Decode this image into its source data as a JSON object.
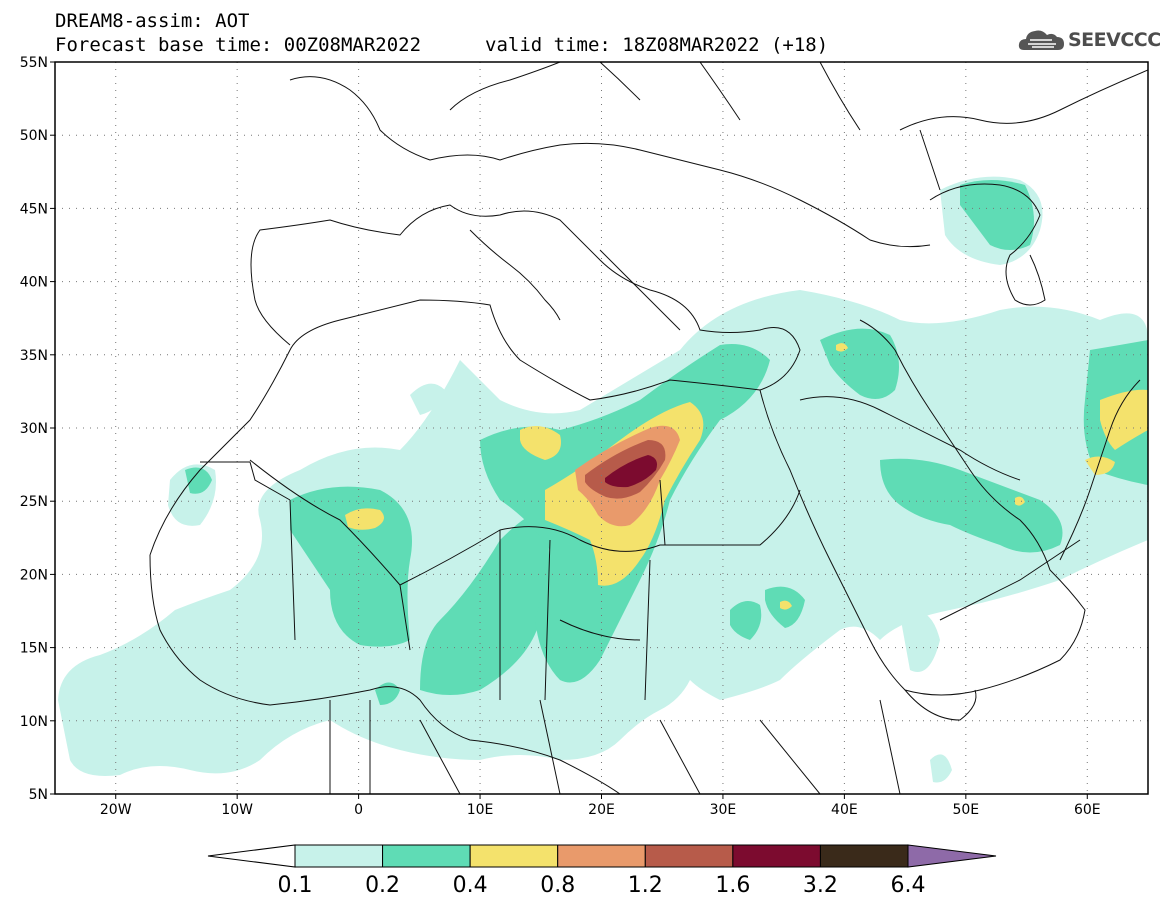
{
  "header": {
    "line1": "DREAM8-assim: AOT",
    "line2": "Forecast base time: 00Z08MAR2022",
    "valid": "valid time: 18Z08MAR2022 (+18)"
  },
  "logo": {
    "text": "SEEVCCC",
    "icon": "cloud-icon"
  },
  "map": {
    "lat_labels": [
      "55N",
      "50N",
      "45N",
      "40N",
      "35N",
      "30N",
      "25N",
      "20N",
      "15N",
      "10N",
      "5N"
    ],
    "lon_labels": [
      "20W",
      "10W",
      "0",
      "10E",
      "20E",
      "30E",
      "40E",
      "50E",
      "60E"
    ],
    "lat_range": [
      5,
      55
    ],
    "lon_range": [
      -25,
      65
    ],
    "grid": true
  },
  "colorbar": {
    "labels": [
      "0.1",
      "0.2",
      "0.4",
      "0.8",
      "1.2",
      "1.6",
      "3.2",
      "6.4"
    ],
    "colors": [
      "#c7f2ea",
      "#5fdcb5",
      "#f4e26c",
      "#e99a6b",
      "#b75b4a",
      "#7c0b2f",
      "#3a2a1a",
      "#8e6aa8"
    ],
    "under_color": "#ffffff",
    "over_color": "#8e6aa8"
  }
}
